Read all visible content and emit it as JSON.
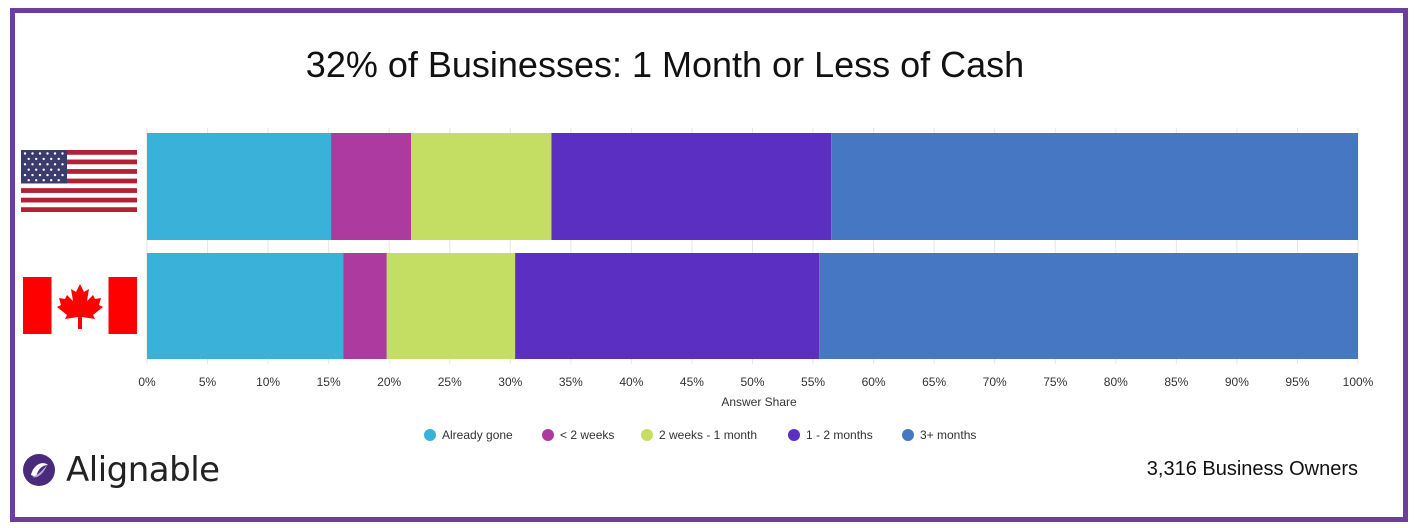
{
  "title": "32% of Businesses: 1 Month or Less of Cash",
  "footer": {
    "count": "3,316 Business Owners",
    "brand": "Alignable"
  },
  "icons": {
    "row1": "united-states-flag",
    "row2": "canada-flag",
    "logo": "alignable-logo"
  },
  "colors": {
    "Already gone": "#3ab1d8",
    "< 2 weeks": "#ad3a9e",
    "2 weeks - 1 month": "#c4de64",
    "1 - 2 months": "#5b2fc2",
    "3+ months": "#4677c2",
    "frame": "#6b3fa0"
  },
  "chart_data": {
    "type": "bar",
    "orientation": "horizontal",
    "stacked": true,
    "categories": [
      "United States",
      "Canada"
    ],
    "series": [
      {
        "name": "Already gone",
        "values": [
          15.2,
          16.2
        ]
      },
      {
        "name": "< 2 weeks",
        "values": [
          6.6,
          3.6
        ]
      },
      {
        "name": "2 weeks - 1 month",
        "values": [
          11.6,
          10.6
        ]
      },
      {
        "name": "1 - 2 months",
        "values": [
          23.1,
          25.1
        ]
      },
      {
        "name": "3+ months",
        "values": [
          43.5,
          44.5
        ]
      }
    ],
    "xlabel": "Answer Share",
    "ylabel": "",
    "xlim": [
      0,
      100
    ],
    "ticks": [
      "0%",
      "5%",
      "10%",
      "15%",
      "20%",
      "25%",
      "30%",
      "35%",
      "40%",
      "45%",
      "50%",
      "55%",
      "60%",
      "65%",
      "70%",
      "75%",
      "80%",
      "85%",
      "90%",
      "95%",
      "100%"
    ],
    "grid": true,
    "legend": "bottom"
  }
}
